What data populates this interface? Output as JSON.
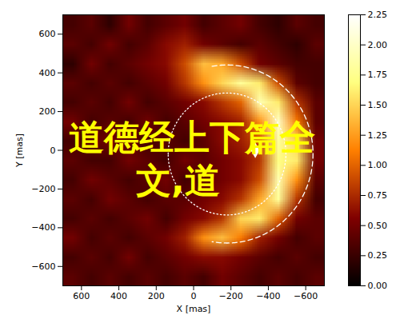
{
  "chart_data": {
    "type": "heatmap",
    "xlabel": "X [mas]",
    "ylabel": "Y [mas]",
    "xlim": [
      700,
      -700
    ],
    "ylim": [
      -700,
      700
    ],
    "xticks": [
      600,
      400,
      200,
      0,
      {
        "value": -200,
        "label": "−200"
      },
      {
        "value": -400,
        "label": "−400"
      },
      {
        "value": -600,
        "label": "−600"
      }
    ],
    "yticks": [
      600,
      400,
      200,
      0,
      {
        "value": -200,
        "label": "−200"
      },
      {
        "value": -400,
        "label": "−400"
      },
      {
        "value": -600,
        "label": "−600"
      }
    ],
    "cells": {
      "x": [
        650,
        550,
        450,
        350,
        250,
        150,
        50,
        -50,
        -150,
        -250,
        -350,
        -450,
        -550,
        -650
      ],
      "y": [
        650,
        550,
        450,
        350,
        250,
        150,
        50,
        -50,
        -150,
        -250,
        -350,
        -450,
        -550,
        -650
      ],
      "values": [
        [
          0.3,
          0.4,
          0.2,
          0.5,
          0.3,
          0.4,
          0.5,
          0.3,
          0.4,
          0.5,
          0.3,
          0.2,
          0.4,
          0.3
        ],
        [
          0.4,
          0.3,
          0.5,
          0.3,
          0.4,
          0.6,
          0.7,
          0.5,
          0.4,
          0.3,
          0.4,
          0.3,
          0.2,
          0.4
        ],
        [
          0.2,
          0.5,
          0.3,
          0.4,
          0.5,
          0.6,
          0.9,
          1.4,
          1.3,
          0.9,
          0.5,
          0.4,
          0.3,
          0.3
        ],
        [
          0.4,
          0.3,
          0.4,
          0.3,
          0.4,
          0.5,
          0.8,
          1.2,
          1.5,
          1.8,
          1.6,
          0.9,
          0.4,
          0.3
        ],
        [
          0.3,
          0.4,
          0.3,
          0.5,
          0.3,
          0.4,
          0.5,
          0.6,
          0.8,
          1.0,
          1.9,
          1.6,
          0.8,
          0.4
        ],
        [
          0.5,
          0.3,
          0.4,
          0.3,
          0.5,
          0.3,
          0.4,
          0.5,
          0.6,
          0.7,
          1.2,
          2.0,
          1.1,
          0.4
        ],
        [
          0.3,
          0.4,
          0.5,
          0.4,
          0.3,
          0.4,
          0.3,
          0.4,
          0.6,
          0.7,
          0.9,
          1.8,
          1.5,
          0.5
        ],
        [
          0.4,
          0.3,
          0.3,
          0.5,
          0.4,
          0.3,
          0.5,
          0.4,
          0.5,
          0.6,
          0.8,
          1.7,
          1.6,
          0.5
        ],
        [
          0.3,
          0.5,
          0.4,
          0.3,
          0.4,
          0.5,
          0.3,
          0.4,
          0.5,
          0.6,
          0.9,
          1.9,
          1.2,
          0.4
        ],
        [
          0.4,
          0.3,
          0.5,
          0.4,
          0.3,
          0.4,
          0.4,
          0.5,
          0.6,
          0.8,
          1.3,
          1.8,
          0.8,
          0.3
        ],
        [
          0.3,
          0.4,
          0.3,
          0.4,
          0.5,
          0.3,
          0.5,
          0.6,
          0.8,
          1.5,
          1.6,
          1.0,
          0.5,
          0.4
        ],
        [
          0.5,
          0.3,
          0.4,
          0.3,
          0.4,
          0.5,
          0.7,
          1.2,
          1.4,
          1.1,
          0.7,
          0.5,
          0.3,
          0.4
        ],
        [
          0.3,
          0.4,
          0.3,
          0.5,
          0.3,
          0.4,
          0.5,
          0.6,
          0.6,
          0.5,
          0.4,
          0.3,
          0.4,
          0.3
        ],
        [
          0.4,
          0.3,
          0.4,
          0.3,
          0.4,
          0.3,
          0.4,
          0.3,
          0.5,
          0.4,
          0.3,
          0.4,
          0.3,
          0.4
        ]
      ]
    },
    "colorbar": {
      "range": [
        0,
        2.25
      ],
      "ticks": [
        {
          "value": 0,
          "label": "0.00"
        },
        {
          "value": 0.25,
          "label": "0.25"
        },
        {
          "value": 0.5,
          "label": "0.50"
        },
        {
          "value": 0.75,
          "label": "0.75"
        },
        {
          "value": 1,
          "label": "1.00"
        },
        {
          "value": 1.25,
          "label": "1.25"
        },
        {
          "value": 1.5,
          "label": "1.50"
        },
        {
          "value": 1.75,
          "label": "1.75"
        },
        {
          "value": 2,
          "label": "2.00"
        },
        {
          "value": 2.25,
          "label": "2.25"
        }
      ]
    },
    "rings": [
      {
        "cx": -179,
        "cy": -19,
        "r": 315,
        "angles": [
          0,
          360
        ],
        "line_style": "dotted"
      },
      {
        "cx": -179,
        "cy": -19,
        "r": 460,
        "angles": [
          80,
          280
        ],
        "line_style": "dashed"
      }
    ],
    "points": [
      {
        "x": -330,
        "y": 0,
        "marker": "diamond"
      }
    ],
    "annotations": [
      "道德经上下篇全",
      "文,道"
    ]
  }
}
